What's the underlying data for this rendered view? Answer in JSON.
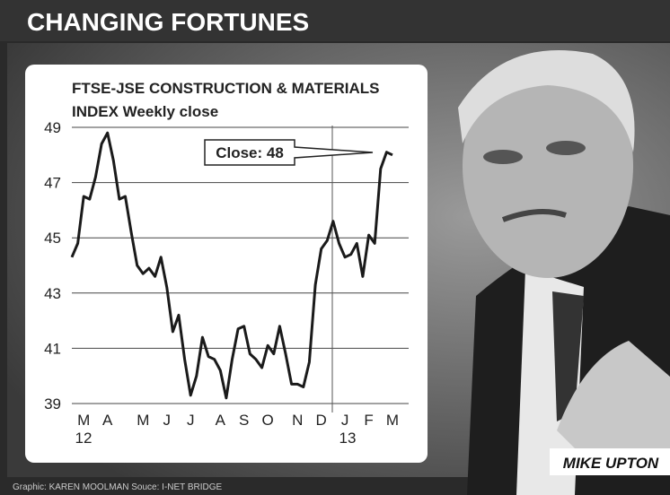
{
  "header": {
    "title": "CHANGING FORTUNES"
  },
  "chart_data": {
    "type": "line",
    "title": "FTSE-JSE CONSTRUCTION & MATERIALS",
    "subtitle": "INDEX Weekly close",
    "categories": [
      null,
      null,
      "M",
      null,
      null,
      null,
      "A",
      null,
      null,
      null,
      null,
      null,
      "M",
      null,
      null,
      null,
      "J",
      null,
      null,
      null,
      "J",
      null,
      null,
      null,
      null,
      "A",
      null,
      null,
      null,
      "S",
      null,
      null,
      null,
      "O",
      null,
      null,
      null,
      null,
      "N",
      null,
      null,
      null,
      "D",
      null,
      null,
      null,
      "J",
      null,
      null,
      null,
      "F",
      null,
      null,
      null,
      "M"
    ],
    "values": [
      44.3,
      44.8,
      46.5,
      46.4,
      47.2,
      48.4,
      48.8,
      47.8,
      46.4,
      46.5,
      45.2,
      44.0,
      43.7,
      43.9,
      43.6,
      44.3,
      43.2,
      41.6,
      42.2,
      40.6,
      39.3,
      40.0,
      41.4,
      40.7,
      40.6,
      40.2,
      39.2,
      40.6,
      41.7,
      41.8,
      40.8,
      40.6,
      40.3,
      41.1,
      40.8,
      41.8,
      40.8,
      39.7,
      39.7,
      39.6,
      40.5,
      43.3,
      44.6,
      44.9,
      45.6,
      44.8,
      44.3,
      44.4,
      44.8,
      43.6,
      45.1,
      44.8,
      47.5,
      48.1,
      48.0
    ],
    "color": "#1a1a1a",
    "ylim": [
      39,
      49
    ],
    "yticks": [
      39,
      41,
      43,
      45,
      47,
      49
    ],
    "grid": true,
    "year_labels": [
      "12",
      "13"
    ],
    "annotation": "Close: 48"
  },
  "photo_caption": "MIKE UPTON",
  "credit": "Graphic: KAREN MOOLMAN  Souce: I-NET BRIDGE"
}
